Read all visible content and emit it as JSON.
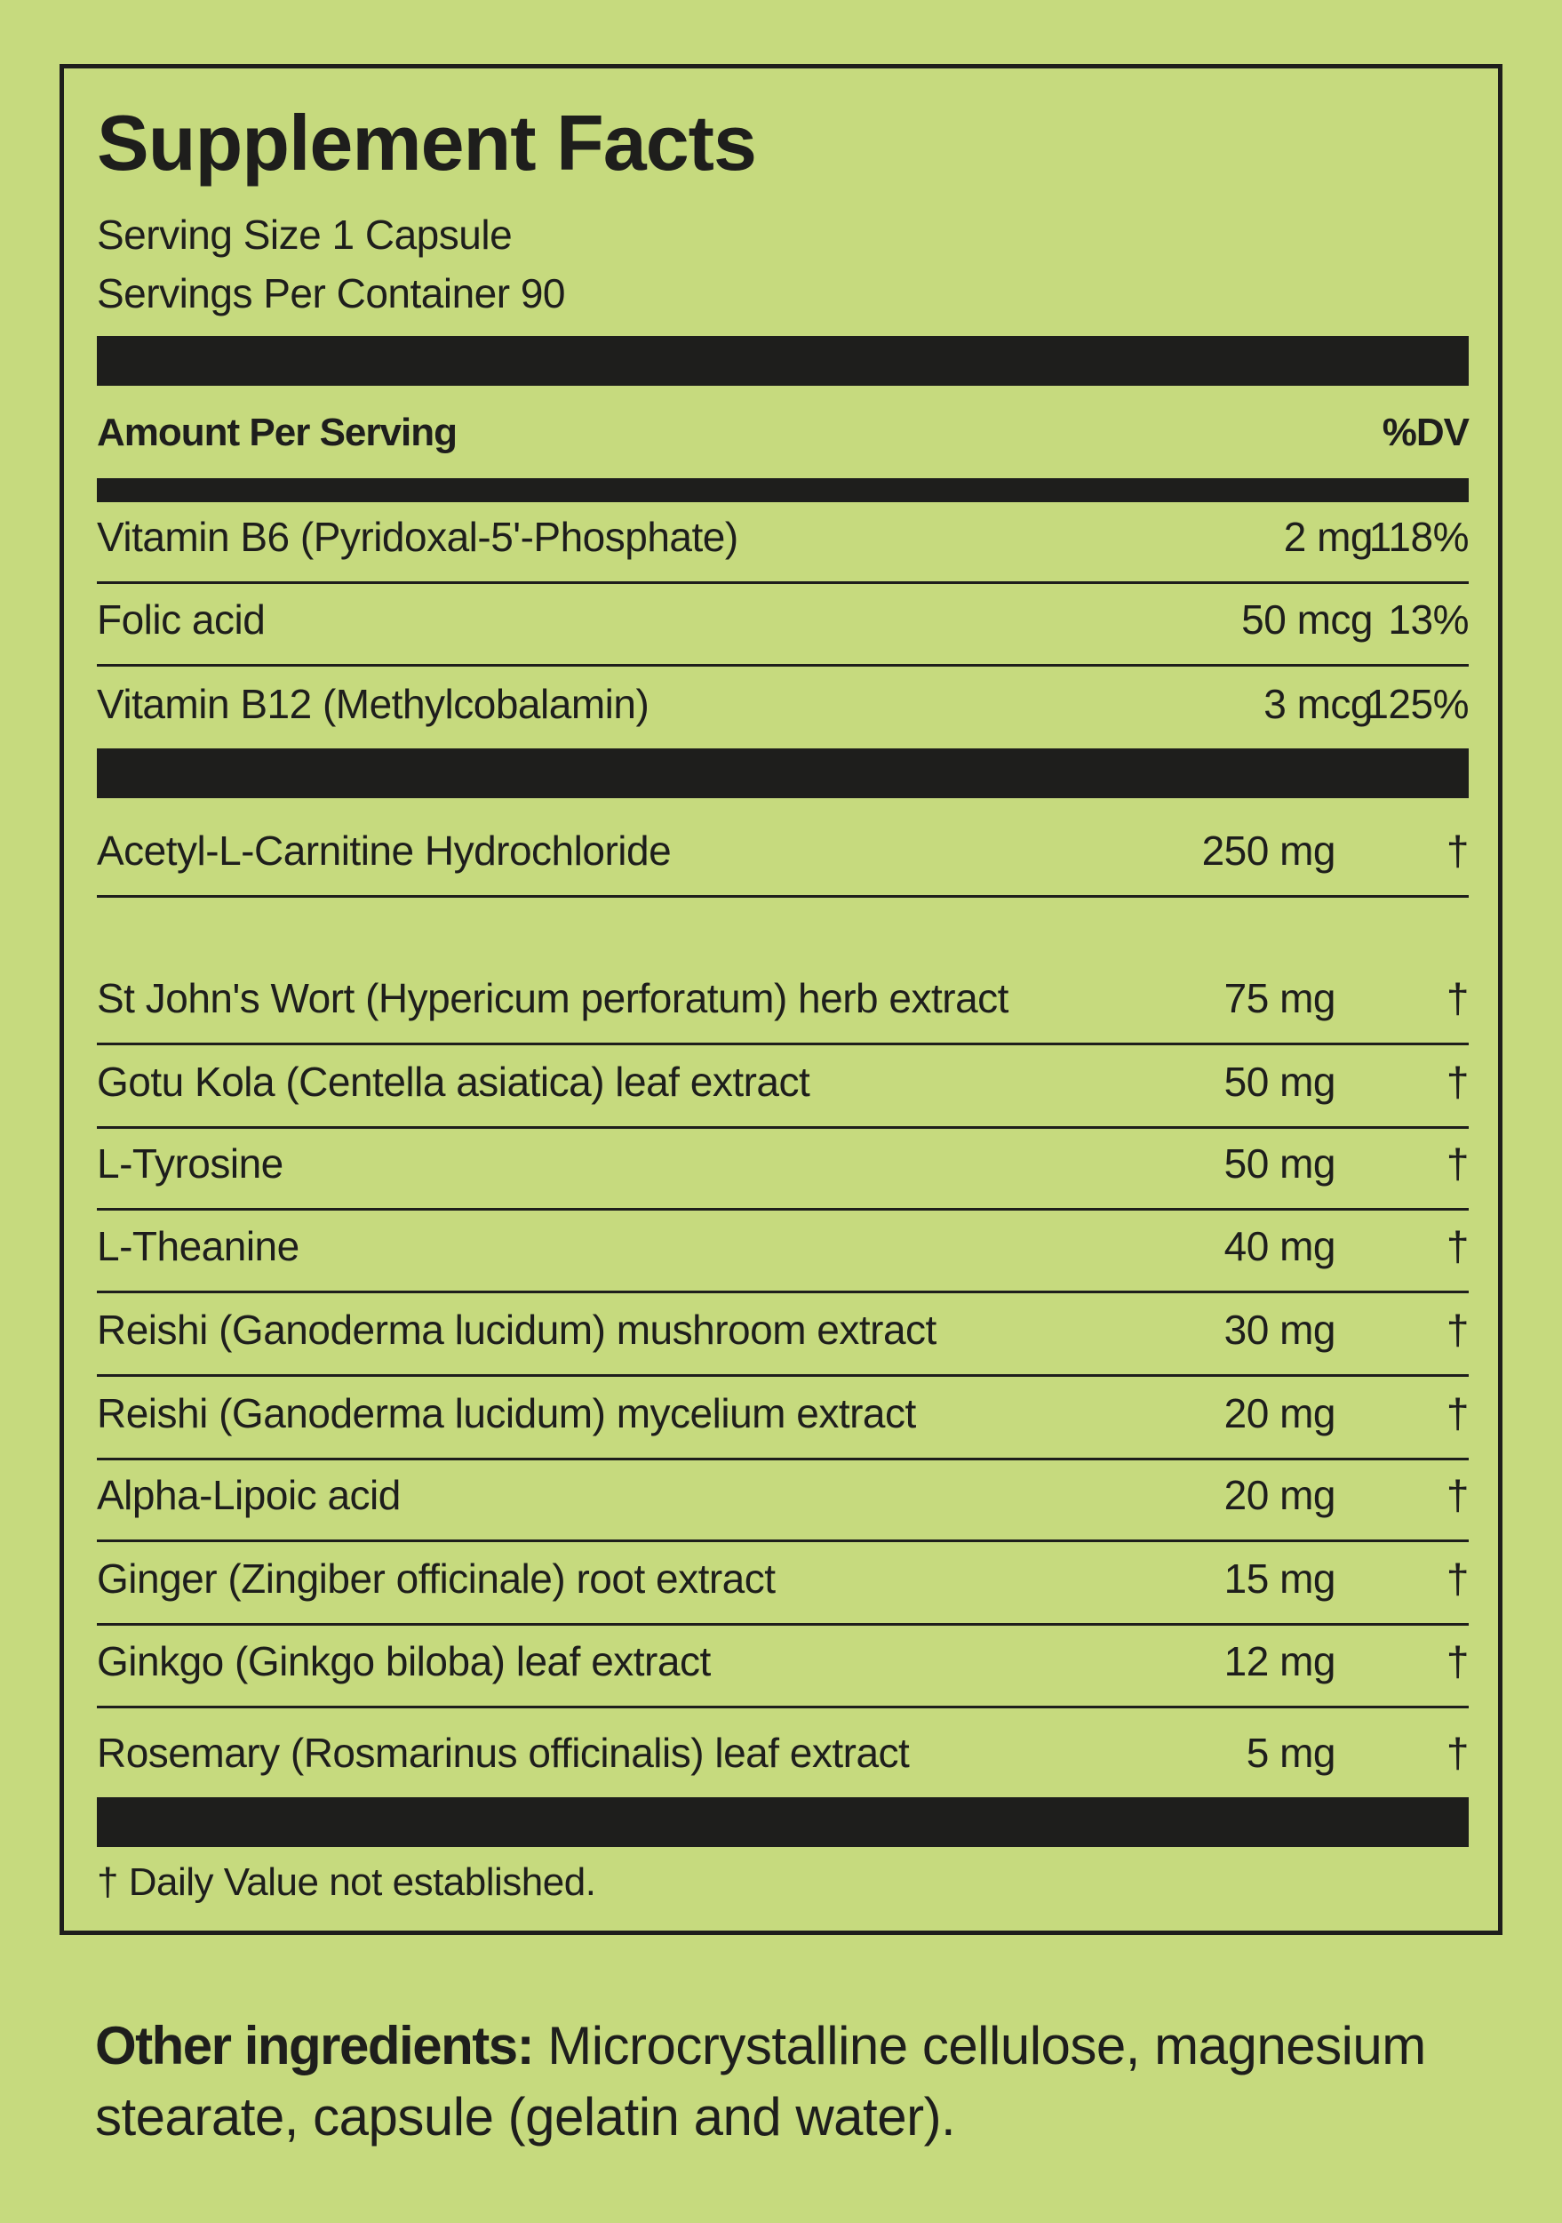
{
  "label": {
    "title": "Supplement Facts",
    "serving_size": "Serving Size 1 Capsule",
    "servings_per_container": "Servings Per Container 90",
    "header_amount": "Amount Per Serving",
    "header_dv": "%DV",
    "vitamins": [
      {
        "name": "Vitamin B6 (Pyridoxal-5'-Phosphate)",
        "amount": "2 mg",
        "dv": "118%"
      },
      {
        "name": "Folic acid",
        "amount": "50 mcg",
        "dv": "13%"
      },
      {
        "name": "Vitamin B12 (Methylcobalamin)",
        "amount": "3 mcg",
        "dv": "125%"
      }
    ],
    "ingredients": [
      {
        "name": "Acetyl-L-Carnitine Hydrochloride",
        "amount": "250 mg",
        "dv": "†"
      },
      {
        "name": "St John's Wort (Hypericum perforatum) herb extract",
        "amount": "75 mg",
        "dv": "†"
      },
      {
        "name": "Gotu Kola (Centella asiatica) leaf extract",
        "amount": "50 mg",
        "dv": "†"
      },
      {
        "name": "L-Tyrosine",
        "amount": "50 mg",
        "dv": "†"
      },
      {
        "name": "L-Theanine",
        "amount": "40 mg",
        "dv": "†"
      },
      {
        "name": "Reishi (Ganoderma lucidum) mushroom extract",
        "amount": "30 mg",
        "dv": "†"
      },
      {
        "name": "Reishi (Ganoderma lucidum) mycelium extract",
        "amount": "20 mg",
        "dv": "†"
      },
      {
        "name": "Alpha-Lipoic acid",
        "amount": "20 mg",
        "dv": "†"
      },
      {
        "name": "Ginger (Zingiber officinale) root extract",
        "amount": "15 mg",
        "dv": "†"
      },
      {
        "name": "Ginkgo (Ginkgo biloba) leaf extract",
        "amount": "12 mg",
        "dv": "†"
      },
      {
        "name": "Rosemary (Rosmarinus officinalis) leaf extract",
        "amount": "5 mg",
        "dv": "†"
      }
    ],
    "footnote": "† Daily Value not established."
  },
  "other_ingredients": {
    "label": "Other ingredients:",
    "text": "Microcrystalline cellulose, magnesium stearate, capsule (gelatin and water)."
  },
  "colors": {
    "background": "#c6da7e",
    "ink": "#1e1e1c"
  }
}
